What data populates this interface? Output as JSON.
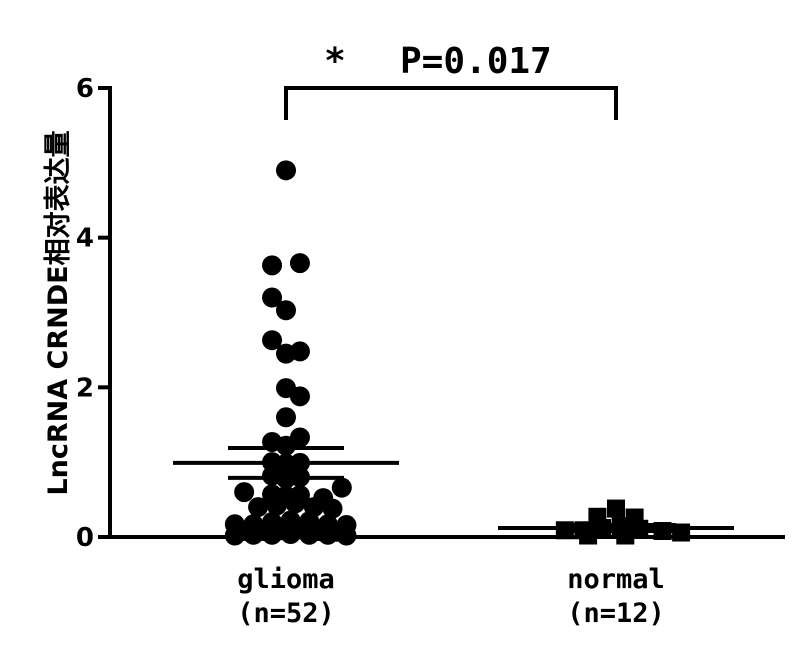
{
  "chart_data": {
    "type": "scatter",
    "ylabel": "LncRNA CRNDE相对表达量",
    "ylim": [
      0,
      6
    ],
    "y_ticks": [
      0,
      2,
      4,
      6
    ],
    "y_tick_labels": [
      "0",
      "2",
      "4",
      "6"
    ],
    "significance": {
      "star": "*",
      "label": "P=0.017"
    },
    "groups": [
      {
        "name": "glioma",
        "label": "glioma",
        "n_label": "(n=52)",
        "marker": "circle",
        "mean": 0.99,
        "sem_upper": 1.19,
        "sem_lower": 0.79,
        "points": [
          {
            "dx": 0.0,
            "y": 4.9
          },
          {
            "dx": -0.15,
            "y": 3.63
          },
          {
            "dx": 0.15,
            "y": 3.66
          },
          {
            "dx": -0.15,
            "y": 3.2
          },
          {
            "dx": 0.0,
            "y": 3.03
          },
          {
            "dx": -0.15,
            "y": 2.63
          },
          {
            "dx": 0.0,
            "y": 2.45
          },
          {
            "dx": 0.15,
            "y": 2.48
          },
          {
            "dx": 0.0,
            "y": 1.99
          },
          {
            "dx": 0.15,
            "y": 1.88
          },
          {
            "dx": 0.0,
            "y": 1.6
          },
          {
            "dx": -0.15,
            "y": 1.27
          },
          {
            "dx": 0.15,
            "y": 1.33
          },
          {
            "dx": 0.0,
            "y": 1.22
          },
          {
            "dx": -0.15,
            "y": 1.0
          },
          {
            "dx": 0.0,
            "y": 0.98
          },
          {
            "dx": 0.15,
            "y": 0.99
          },
          {
            "dx": -0.15,
            "y": 0.82
          },
          {
            "dx": 0.0,
            "y": 0.78
          },
          {
            "dx": 0.15,
            "y": 0.8
          },
          {
            "dx": -0.45,
            "y": 0.6
          },
          {
            "dx": -0.15,
            "y": 0.57
          },
          {
            "dx": 0.0,
            "y": 0.55
          },
          {
            "dx": 0.15,
            "y": 0.56
          },
          {
            "dx": 0.4,
            "y": 0.52
          },
          {
            "dx": 0.6,
            "y": 0.66
          },
          {
            "dx": -0.3,
            "y": 0.4
          },
          {
            "dx": -0.1,
            "y": 0.42
          },
          {
            "dx": 0.1,
            "y": 0.45
          },
          {
            "dx": 0.3,
            "y": 0.4
          },
          {
            "dx": 0.5,
            "y": 0.38
          },
          {
            "dx": -0.55,
            "y": 0.17
          },
          {
            "dx": -0.35,
            "y": 0.17
          },
          {
            "dx": -0.15,
            "y": 0.2
          },
          {
            "dx": 0.05,
            "y": 0.22
          },
          {
            "dx": 0.25,
            "y": 0.21
          },
          {
            "dx": 0.45,
            "y": 0.17
          },
          {
            "dx": 0.65,
            "y": 0.16
          },
          {
            "dx": -0.45,
            "y": 0.08
          },
          {
            "dx": -0.25,
            "y": 0.08
          },
          {
            "dx": -0.05,
            "y": 0.09
          },
          {
            "dx": 0.15,
            "y": 0.1
          },
          {
            "dx": 0.35,
            "y": 0.08
          },
          {
            "dx": 0.55,
            "y": 0.07
          },
          {
            "dx": -0.35,
            "y": 0.03
          },
          {
            "dx": -0.15,
            "y": 0.03
          },
          {
            "dx": 0.05,
            "y": 0.04
          },
          {
            "dx": 0.25,
            "y": 0.03
          },
          {
            "dx": 0.45,
            "y": 0.03
          },
          {
            "dx": -0.55,
            "y": 0.02
          },
          {
            "dx": 0.65,
            "y": 0.02
          },
          {
            "dx": 0.0,
            "y": 0.14
          }
        ]
      },
      {
        "name": "normal",
        "label": "normal",
        "n_label": "(n=12)",
        "marker": "square",
        "mean": 0.12,
        "sem_upper": 0.16,
        "sem_lower": 0.08,
        "points": [
          {
            "dx": 0.0,
            "y": 0.38
          },
          {
            "dx": -0.2,
            "y": 0.27
          },
          {
            "dx": 0.2,
            "y": 0.26
          },
          {
            "dx": -0.55,
            "y": 0.09
          },
          {
            "dx": -0.35,
            "y": 0.09
          },
          {
            "dx": -0.15,
            "y": 0.12
          },
          {
            "dx": 0.05,
            "y": 0.14
          },
          {
            "dx": 0.25,
            "y": 0.11
          },
          {
            "dx": 0.5,
            "y": 0.08
          },
          {
            "dx": 0.7,
            "y": 0.06
          },
          {
            "dx": -0.3,
            "y": 0.02
          },
          {
            "dx": 0.1,
            "y": 0.02
          }
        ]
      }
    ]
  }
}
